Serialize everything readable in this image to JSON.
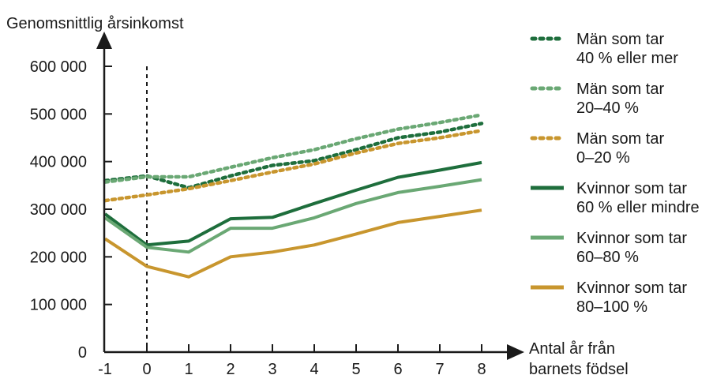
{
  "chart_data": {
    "type": "line",
    "ylabel": "Genomsnittlig årsinkomst",
    "xlabel": [
      "Antal år från",
      "barnets födsel"
    ],
    "x": [
      -1,
      0,
      1,
      2,
      3,
      4,
      5,
      6,
      7,
      8
    ],
    "x_tick_labels": [
      "-1",
      "0",
      "1",
      "2",
      "3",
      "4",
      "5",
      "6",
      "7",
      "8"
    ],
    "y_ticks": [
      0,
      100000,
      200000,
      300000,
      400000,
      500000,
      600000
    ],
    "y_tick_labels": [
      "0",
      "100 000",
      "200 000",
      "300 000",
      "400 000",
      "500 000",
      "600 000"
    ],
    "ylim": [
      0,
      620000
    ],
    "xlim": [
      -1,
      8
    ],
    "reference_line_x": 0,
    "grid": false,
    "legend_position": "right",
    "series": [
      {
        "name": "Män som tar 40 % eller mer",
        "label_lines": [
          "Män som tar",
          "40 % eller mer"
        ],
        "color": "#1e6e3c",
        "style": "dotted",
        "values": [
          360000,
          370000,
          345000,
          370000,
          392000,
          402000,
          425000,
          450000,
          462000,
          480000
        ]
      },
      {
        "name": "Män som tar 20–40 %",
        "label_lines": [
          "Män som tar",
          "20–40 %"
        ],
        "color": "#6aa874",
        "style": "dotted",
        "values": [
          357000,
          368000,
          368000,
          388000,
          408000,
          425000,
          448000,
          468000,
          482000,
          498000
        ]
      },
      {
        "name": "Män som tar 0–20 %",
        "label_lines": [
          "Män som tar",
          "0–20 %"
        ],
        "color": "#c8962e",
        "style": "dotted",
        "values": [
          318000,
          330000,
          343000,
          360000,
          378000,
          395000,
          418000,
          438000,
          450000,
          465000
        ]
      },
      {
        "name": "Kvinnor som tar 60 % eller mindre",
        "label_lines": [
          "Kvinnor som tar",
          "60 % eller mindre"
        ],
        "color": "#1e6e3c",
        "style": "solid",
        "values": [
          290000,
          225000,
          233000,
          280000,
          283000,
          312000,
          340000,
          367000,
          382000,
          398000
        ]
      },
      {
        "name": "Kvinnor som tar 60–80 %",
        "label_lines": [
          "Kvinnor som tar",
          "60–80 %"
        ],
        "color": "#6aa874",
        "style": "solid",
        "values": [
          282000,
          220000,
          210000,
          260000,
          260000,
          282000,
          312000,
          335000,
          348000,
          362000
        ]
      },
      {
        "name": "Kvinnor som tar 80–100 %",
        "label_lines": [
          "Kvinnor som tar",
          "80–100 %"
        ],
        "color": "#c8962e",
        "style": "solid",
        "values": [
          238000,
          180000,
          158000,
          200000,
          210000,
          225000,
          248000,
          272000,
          285000,
          298000
        ]
      }
    ]
  }
}
